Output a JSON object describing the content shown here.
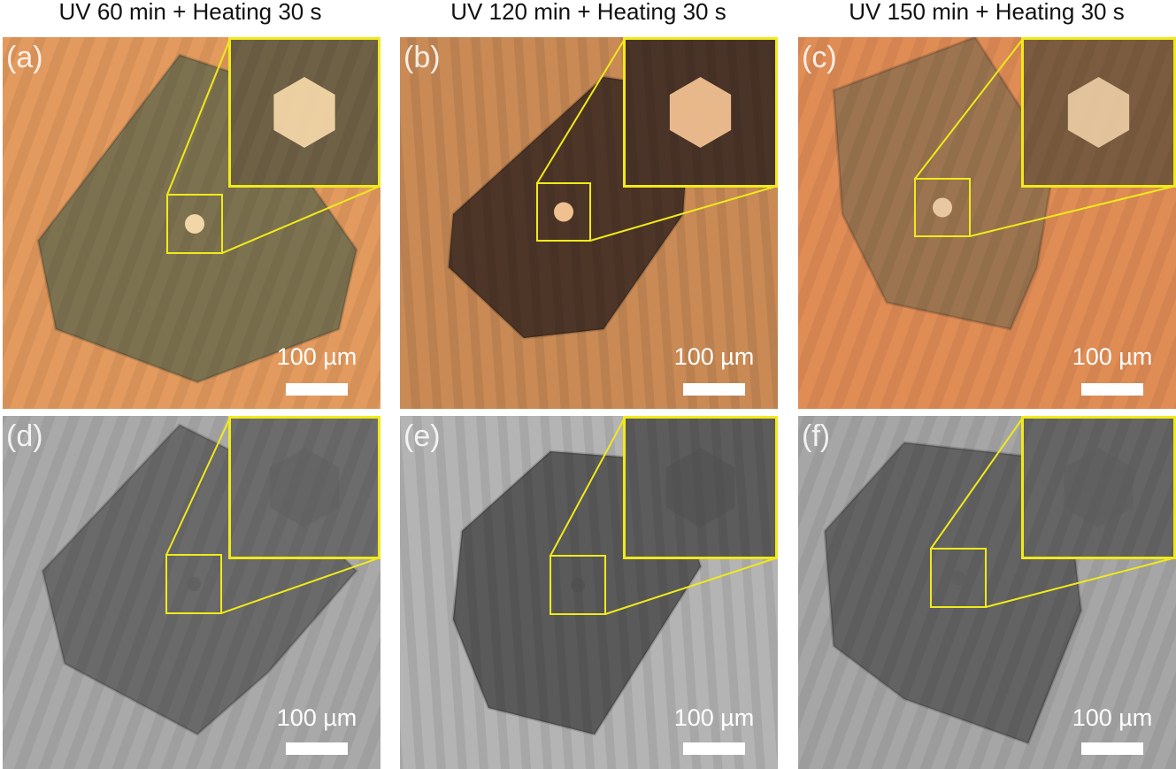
{
  "columns": [
    {
      "title": "UV 60 min + Heating 30 s"
    },
    {
      "title": "UV 120 min + Heating 30 s"
    },
    {
      "title": "UV 150 min + Heating 30 s"
    }
  ],
  "panels": [
    {
      "label": "(a)",
      "scale_bar": "100 µm"
    },
    {
      "label": "(b)",
      "scale_bar": "100 µm"
    },
    {
      "label": "(c)",
      "scale_bar": "100 µm"
    },
    {
      "label": "(d)",
      "scale_bar": "100 µm"
    },
    {
      "label": "(e)",
      "scale_bar": "100 µm"
    },
    {
      "label": "(f)",
      "scale_bar": "100 µm"
    }
  ]
}
